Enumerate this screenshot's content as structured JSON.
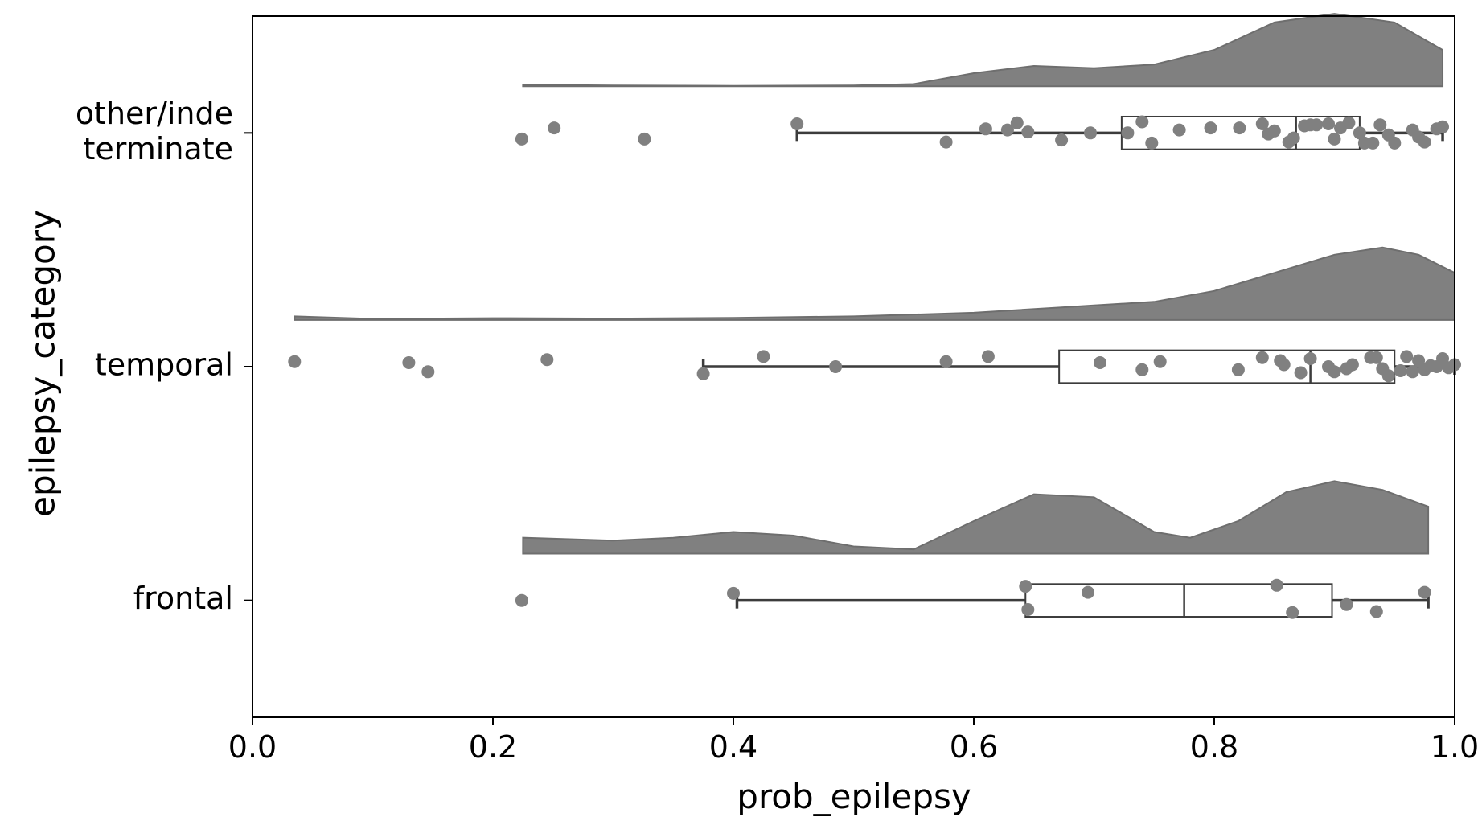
{
  "chart_data": {
    "type": "raincloud",
    "xlabel": "prob_epilepsy",
    "ylabel": "epilepsy_category",
    "xlim": [
      0.0,
      1.0
    ],
    "xticks": [
      "0.0",
      "0.2",
      "0.4",
      "0.6",
      "0.8",
      "1.0"
    ],
    "categories": [
      {
        "key": "other",
        "label_lines": [
          "other/inde",
          "terminate"
        ],
        "box": {
          "whisker_low": 0.453,
          "q1": 0.723,
          "median": 0.868,
          "q3": 0.921,
          "whisker_high": 0.99
        },
        "density": [
          [
            0.225,
            0.02
          ],
          [
            0.3,
            0.01
          ],
          [
            0.4,
            0.005
          ],
          [
            0.5,
            0.01
          ],
          [
            0.55,
            0.03
          ],
          [
            0.6,
            0.18
          ],
          [
            0.65,
            0.28
          ],
          [
            0.7,
            0.25
          ],
          [
            0.75,
            0.3
          ],
          [
            0.8,
            0.5
          ],
          [
            0.85,
            0.88
          ],
          [
            0.9,
            1.0
          ],
          [
            0.95,
            0.88
          ],
          [
            0.99,
            0.5
          ]
        ],
        "points": [
          [
            0.224,
            0.12
          ],
          [
            0.251,
            -0.1
          ],
          [
            0.326,
            0.12
          ],
          [
            0.453,
            -0.18
          ],
          [
            0.577,
            0.18
          ],
          [
            0.61,
            -0.08
          ],
          [
            0.628,
            -0.06
          ],
          [
            0.636,
            -0.2
          ],
          [
            0.645,
            -0.02
          ],
          [
            0.673,
            0.14
          ],
          [
            0.697,
            0.0
          ],
          [
            0.728,
            0.0
          ],
          [
            0.74,
            -0.22
          ],
          [
            0.748,
            0.2
          ],
          [
            0.771,
            -0.06
          ],
          [
            0.797,
            -0.1
          ],
          [
            0.821,
            -0.1
          ],
          [
            0.84,
            -0.18
          ],
          [
            0.845,
            0.02
          ],
          [
            0.85,
            -0.04
          ],
          [
            0.862,
            0.18
          ],
          [
            0.866,
            0.1
          ],
          [
            0.875,
            -0.14
          ],
          [
            0.88,
            -0.16
          ],
          [
            0.885,
            -0.16
          ],
          [
            0.895,
            -0.18
          ],
          [
            0.9,
            0.12
          ],
          [
            0.905,
            -0.1
          ],
          [
            0.912,
            -0.2
          ],
          [
            0.921,
            0.0
          ],
          [
            0.925,
            0.2
          ],
          [
            0.932,
            0.2
          ],
          [
            0.938,
            -0.16
          ],
          [
            0.945,
            0.04
          ],
          [
            0.95,
            0.2
          ],
          [
            0.965,
            -0.06
          ],
          [
            0.97,
            0.08
          ],
          [
            0.975,
            0.18
          ],
          [
            0.985,
            -0.08
          ],
          [
            0.99,
            -0.12
          ]
        ]
      },
      {
        "key": "temporal",
        "label_lines": [
          "temporal"
        ],
        "box": {
          "whisker_low": 0.375,
          "q1": 0.671,
          "median": 0.88,
          "q3": 0.95,
          "whisker_high": 1.0
        },
        "density": [
          [
            0.035,
            0.05
          ],
          [
            0.1,
            0.015
          ],
          [
            0.2,
            0.025
          ],
          [
            0.3,
            0.02
          ],
          [
            0.4,
            0.03
          ],
          [
            0.5,
            0.05
          ],
          [
            0.6,
            0.1
          ],
          [
            0.7,
            0.2
          ],
          [
            0.75,
            0.25
          ],
          [
            0.8,
            0.4
          ],
          [
            0.85,
            0.65
          ],
          [
            0.9,
            0.9
          ],
          [
            0.94,
            1.0
          ],
          [
            0.97,
            0.9
          ],
          [
            1.0,
            0.65
          ]
        ],
        "points": [
          [
            0.035,
            -0.1
          ],
          [
            0.13,
            -0.08
          ],
          [
            0.146,
            0.1
          ],
          [
            0.245,
            -0.14
          ],
          [
            0.375,
            0.14
          ],
          [
            0.425,
            -0.2
          ],
          [
            0.485,
            0.0
          ],
          [
            0.577,
            -0.1
          ],
          [
            0.612,
            -0.2
          ],
          [
            0.705,
            -0.08
          ],
          [
            0.74,
            0.06
          ],
          [
            0.755,
            -0.1
          ],
          [
            0.82,
            0.06
          ],
          [
            0.84,
            -0.18
          ],
          [
            0.855,
            -0.12
          ],
          [
            0.858,
            -0.04
          ],
          [
            0.872,
            0.12
          ],
          [
            0.88,
            -0.16
          ],
          [
            0.895,
            0.0
          ],
          [
            0.9,
            0.1
          ],
          [
            0.91,
            0.04
          ],
          [
            0.915,
            -0.04
          ],
          [
            0.93,
            -0.18
          ],
          [
            0.935,
            -0.18
          ],
          [
            0.94,
            0.04
          ],
          [
            0.945,
            0.18
          ],
          [
            0.955,
            0.08
          ],
          [
            0.96,
            -0.2
          ],
          [
            0.965,
            0.1
          ],
          [
            0.97,
            -0.12
          ],
          [
            0.975,
            0.06
          ],
          [
            0.98,
            -0.02
          ],
          [
            0.985,
            0.0
          ],
          [
            0.99,
            -0.16
          ],
          [
            0.995,
            0.02
          ],
          [
            1.0,
            -0.04
          ]
        ]
      },
      {
        "key": "frontal",
        "label_lines": [
          "frontal"
        ],
        "box": {
          "whisker_low": 0.403,
          "q1": 0.643,
          "median": 0.775,
          "q3": 0.898,
          "whisker_high": 0.978
        },
        "density": [
          [
            0.225,
            0.22
          ],
          [
            0.3,
            0.18
          ],
          [
            0.35,
            0.22
          ],
          [
            0.4,
            0.3
          ],
          [
            0.45,
            0.25
          ],
          [
            0.5,
            0.1
          ],
          [
            0.55,
            0.06
          ],
          [
            0.6,
            0.45
          ],
          [
            0.65,
            0.82
          ],
          [
            0.7,
            0.78
          ],
          [
            0.75,
            0.3
          ],
          [
            0.78,
            0.22
          ],
          [
            0.82,
            0.45
          ],
          [
            0.86,
            0.85
          ],
          [
            0.9,
            1.0
          ],
          [
            0.94,
            0.88
          ],
          [
            0.978,
            0.65
          ]
        ],
        "points": [
          [
            0.224,
            0.0
          ],
          [
            0.4,
            -0.14
          ],
          [
            0.643,
            -0.28
          ],
          [
            0.645,
            0.18
          ],
          [
            0.695,
            -0.16
          ],
          [
            0.852,
            -0.3
          ],
          [
            0.865,
            0.24
          ],
          [
            0.91,
            0.08
          ],
          [
            0.935,
            0.22
          ],
          [
            0.975,
            -0.16
          ]
        ]
      }
    ]
  }
}
